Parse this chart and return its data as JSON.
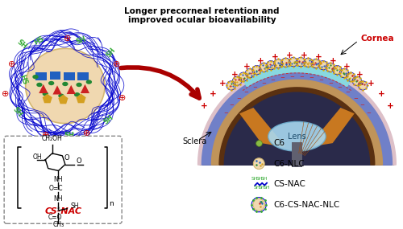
{
  "bg_color": "#ffffff",
  "text_annotation": "Longer precorneal retention and\nimproved ocular bioavailability",
  "cornea_label": "Cornea",
  "sclera_label": "Sclera",
  "lens_label": "Lens",
  "cs_nac_label": "CS-NAC",
  "legend_items": [
    "C6",
    "C6-NLC",
    "CS-NAC",
    "C6-CS-NAC-NLC"
  ],
  "arrow_color": "#aa0000",
  "blue_color": "#0000cc",
  "green_color": "#33aa33",
  "red_color": "#cc0000",
  "eye_dark": "#2a2a4a",
  "eye_blue_layer": "#6070c0",
  "eye_pink": "#e8c0c8",
  "eye_tan": "#c8a878",
  "eye_brown": "#a06828",
  "eye_iris_brown": "#c87820",
  "eye_lens": "#a8d8f0",
  "eye_cornea_cyan": "#88d8e0",
  "eye_cornea_dashed": "#cc3333",
  "nlc_tan": "#f0d8b0",
  "nlc_edge": "#d4b870",
  "shape_blue": "#2060c0",
  "shape_red": "#cc2222",
  "shape_green": "#228833",
  "shape_yellow": "#d4a020"
}
